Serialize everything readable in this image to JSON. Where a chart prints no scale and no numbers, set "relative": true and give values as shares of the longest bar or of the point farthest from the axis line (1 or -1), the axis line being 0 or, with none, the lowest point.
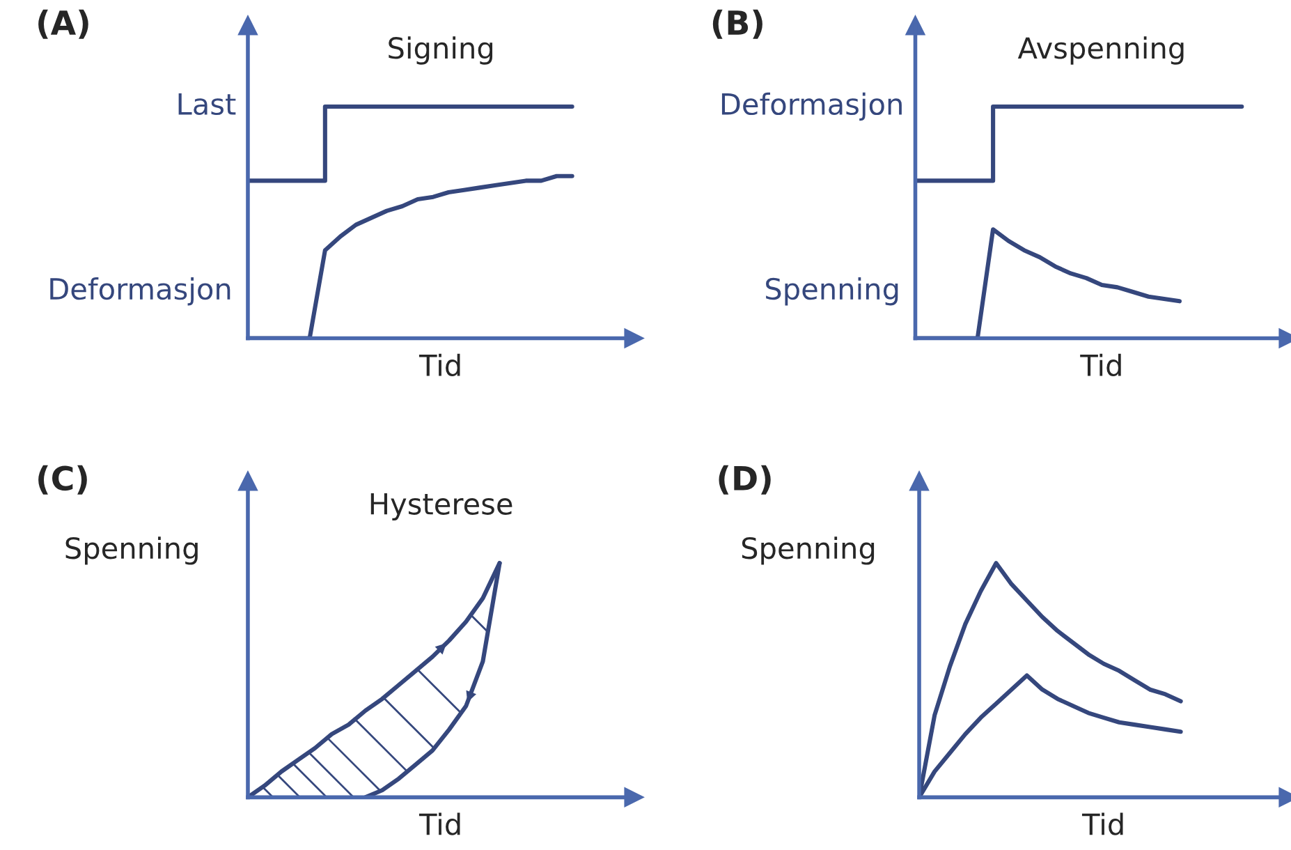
{
  "chart_data": [
    {
      "type": "line",
      "relative": true,
      "title": "Signing",
      "xlabel": "Tid",
      "annotations": [
        "(A)"
      ],
      "tick_labels": false,
      "categories": [
        null,
        null,
        null,
        null,
        null,
        null,
        null,
        null,
        null,
        null,
        null,
        null,
        null,
        null,
        null,
        null,
        null,
        null,
        null,
        null,
        null,
        null,
        null,
        null,
        null,
        null
      ],
      "series": [
        {
          "name": "Last",
          "type": "step",
          "color": "#35477d",
          "values": [
            0.68,
            0.68,
            0.68,
            0.68,
            0.68,
            1,
            1,
            1,
            1,
            1,
            1,
            1,
            1,
            1,
            1,
            1,
            1,
            1,
            1,
            1,
            1,
            1,
            null,
            null,
            null,
            null
          ]
        },
        {
          "name": "Deformasjon",
          "color": "#35477d",
          "values": [
            0,
            0,
            0,
            0,
            0,
            0.38,
            0.44,
            0.49,
            0.52,
            0.55,
            0.57,
            0.6,
            0.61,
            0.63,
            0.64,
            0.65,
            0.66,
            0.67,
            0.68,
            0.68,
            0.7,
            0.7,
            null,
            null,
            null,
            null
          ]
        }
      ]
    },
    {
      "type": "line",
      "relative": true,
      "title": "Avspenning",
      "xlabel": "Tid",
      "annotations": [
        "(B)"
      ],
      "tick_labels": false,
      "categories": [
        null,
        null,
        null,
        null,
        null,
        null,
        null,
        null,
        null,
        null,
        null,
        null,
        null,
        null,
        null,
        null,
        null,
        null,
        null,
        null,
        null,
        null,
        null,
        null,
        null
      ],
      "series": [
        {
          "name": "Deformasjon",
          "type": "step",
          "color": "#35477d",
          "values": [
            0.68,
            0.68,
            0.68,
            0.68,
            0.68,
            1,
            1,
            1,
            1,
            1,
            1,
            1,
            1,
            1,
            1,
            1,
            1,
            1,
            1,
            1,
            1,
            1,
            null,
            null,
            null
          ]
        },
        {
          "name": "Spenning",
          "color": "#35477d",
          "values": [
            0,
            0,
            0,
            0,
            0,
            0.47,
            0.42,
            0.38,
            0.35,
            0.31,
            0.28,
            0.26,
            0.23,
            0.22,
            0.2,
            0.18,
            0.17,
            0.16,
            null,
            null,
            null,
            null,
            null,
            null,
            null
          ]
        }
      ]
    },
    {
      "type": "line",
      "relative": true,
      "title": "Hysterese",
      "xlabel": "Tid",
      "ylabel": "Spenning",
      "annotations": [
        "(C)"
      ],
      "tick_labels": false,
      "categories": [
        null,
        null,
        null,
        null,
        null,
        null,
        null,
        null,
        null,
        null,
        null,
        null,
        null,
        null,
        null,
        null,
        null,
        null,
        null,
        null,
        null,
        null,
        null,
        null
      ],
      "series": [
        {
          "color": "#35477d",
          "values": [
            0,
            0.05,
            0.11,
            0.16,
            0.21,
            0.27,
            0.31,
            0.37,
            0.42,
            0.48,
            0.54,
            0.6,
            0.67,
            0.75,
            0.85,
            1,
            null,
            null,
            null,
            null,
            null,
            null,
            null,
            null
          ]
        },
        {
          "color": "#35477d",
          "values": [
            null,
            null,
            null,
            null,
            null,
            null,
            null,
            0,
            0.03,
            0.08,
            0.14,
            0.2,
            0.29,
            0.39,
            0.58,
            1,
            null,
            null,
            null,
            null,
            null,
            null,
            null,
            null
          ]
        }
      ]
    },
    {
      "type": "line",
      "relative": true,
      "xlabel": "Tid",
      "ylabel": "Spenning",
      "annotations": [
        "(D)"
      ],
      "tick_labels": false,
      "categories": [
        null,
        null,
        null,
        null,
        null,
        null,
        null,
        null,
        null,
        null,
        null,
        null,
        null,
        null,
        null,
        null,
        null,
        null,
        null,
        null,
        null,
        null,
        null,
        null,
        null
      ],
      "series": [
        {
          "color": "#35477d",
          "values": [
            0,
            0.35,
            0.56,
            0.74,
            0.88,
            1,
            0.91,
            0.84,
            0.77,
            0.71,
            0.66,
            0.61,
            0.57,
            0.54,
            0.5,
            0.46,
            0.44,
            0.41,
            null,
            null,
            null,
            null,
            null,
            null,
            null
          ]
        },
        {
          "color": "#35477d",
          "values": [
            0,
            0.11,
            0.19,
            0.27,
            0.34,
            0.4,
            0.46,
            0.52,
            0.46,
            0.42,
            0.39,
            0.36,
            0.34,
            0.32,
            0.31,
            0.3,
            0.29,
            0.28,
            null,
            null,
            null,
            null,
            null,
            null,
            null
          ]
        }
      ]
    }
  ]
}
